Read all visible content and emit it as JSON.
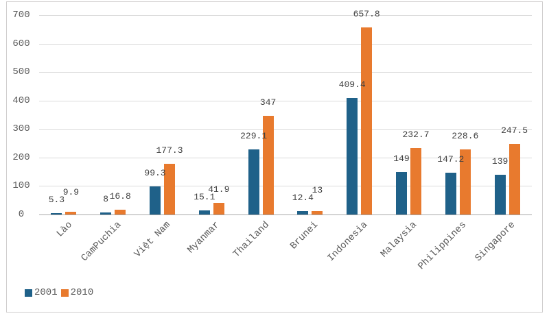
{
  "chart_data": {
    "type": "bar",
    "title": "",
    "categories": [
      "Lào",
      "CamPuchia",
      "Việt Nam",
      "Myanmar",
      "Thailand",
      "Brunei",
      "Indonesia",
      "Malaysia",
      "Philippines",
      "Singapore"
    ],
    "series": [
      {
        "name": "2001",
        "color": "#1F6189",
        "values": [
          5.3,
          8,
          99.3,
          15.1,
          229.1,
          12.4,
          409.4,
          149,
          147.2,
          139
        ]
      },
      {
        "name": "2010",
        "color": "#E87A2E",
        "values": [
          9.9,
          16.8,
          177.3,
          41.9,
          347,
          13,
          657.8,
          232.7,
          228.6,
          247.5
        ]
      }
    ],
    "xlabel": "",
    "ylabel": "",
    "ylim": [
      0,
      700
    ],
    "ytick_step": 100,
    "ytick_labels": [
      "0",
      "100",
      "200",
      "300",
      "400",
      "500",
      "600",
      "700"
    ],
    "grid": "horizontal",
    "data_labels": "outside-end",
    "legend_position": "bottom-left",
    "style": {
      "gridline_color": "#D9D9D9",
      "axis_line_color": "#A6A6A6",
      "tick_text_color": "#595959",
      "data_label_color": "#404040",
      "frame_border_color": "#D0CECE",
      "background": "#FFFFFF"
    }
  }
}
